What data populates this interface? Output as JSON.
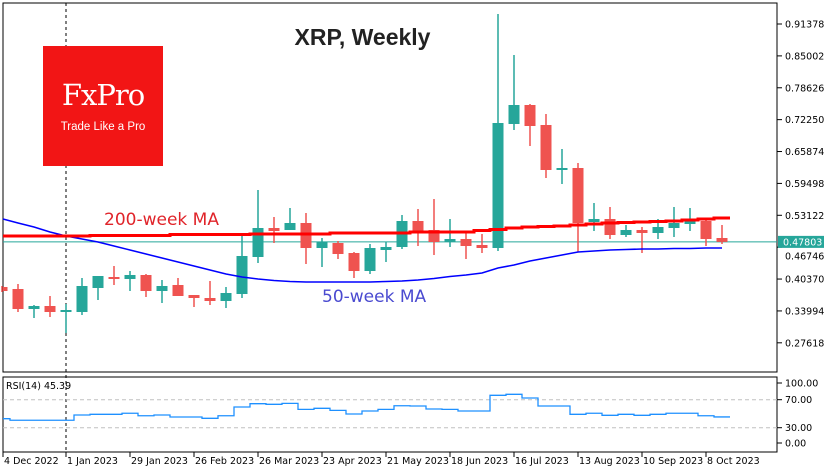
{
  "chart_data": {
    "type": "candlestick",
    "title": "XRP, Weekly",
    "price_axis": {
      "ticks": [
        "0.91378",
        "0.85002",
        "0.78626",
        "0.72250",
        "0.65874",
        "0.59498",
        "0.53122",
        "0.46746",
        "0.40370",
        "0.33994",
        "0.27618"
      ],
      "ylim": [
        0.2178,
        0.9558
      ]
    },
    "current_price": {
      "label": "0.47803",
      "value": 0.47803,
      "color": "#26a69a"
    },
    "x_labels": [
      {
        "label": "4 Dec 2022",
        "index": 0
      },
      {
        "label": "1 Jan 2023",
        "index": 4
      },
      {
        "label": "29 Jan 2023",
        "index": 8
      },
      {
        "label": "26 Feb 2023",
        "index": 12
      },
      {
        "label": "26 Mar 2023",
        "index": 16
      },
      {
        "label": "23 Apr 2023",
        "index": 20
      },
      {
        "label": "21 May 2023",
        "index": 24
      },
      {
        "label": "18 Jun 2023",
        "index": 28
      },
      {
        "label": "16 Jul 2023",
        "index": 32
      },
      {
        "label": "13 Aug 2023",
        "index": 36
      },
      {
        "label": "10 Sep 2023",
        "index": 40
      },
      {
        "label": "8 Oct 2023",
        "index": 44
      }
    ],
    "period_separator_index": 4,
    "ohlc": [
      [
        0.3878,
        0.3898,
        0.3778,
        0.3798
      ],
      [
        0.3838,
        0.3938,
        0.3378,
        0.3438
      ],
      [
        0.3438,
        0.3518,
        0.3258,
        0.3498
      ],
      [
        0.3498,
        0.3698,
        0.3278,
        0.3378
      ],
      [
        0.3378,
        0.3538,
        0.2958,
        0.3418
      ],
      [
        0.3378,
        0.4058,
        0.3318,
        0.3898
      ],
      [
        0.3858,
        0.4098,
        0.3618,
        0.4098
      ],
      [
        0.4078,
        0.4298,
        0.3918,
        0.4038
      ],
      [
        0.4038,
        0.4198,
        0.3798,
        0.4118
      ],
      [
        0.4118,
        0.4138,
        0.3678,
        0.3798
      ],
      [
        0.3798,
        0.4018,
        0.3558,
        0.3898
      ],
      [
        0.3918,
        0.4058,
        0.3698,
        0.3698
      ],
      [
        0.3718,
        0.3718,
        0.3478,
        0.3658
      ],
      [
        0.3658,
        0.3998,
        0.3518,
        0.3598
      ],
      [
        0.3598,
        0.3878,
        0.3458,
        0.3758
      ],
      [
        0.3738,
        0.4898,
        0.3658,
        0.4498
      ],
      [
        0.4478,
        0.5818,
        0.4358,
        0.5058
      ],
      [
        0.5058,
        0.5278,
        0.4758,
        0.4998
      ],
      [
        0.5018,
        0.5458,
        0.5018,
        0.5158
      ],
      [
        0.5158,
        0.5358,
        0.4338,
        0.4658
      ],
      [
        0.4658,
        0.4858,
        0.4278,
        0.4778
      ],
      [
        0.4758,
        0.4798,
        0.4438,
        0.4538
      ],
      [
        0.4558,
        0.4578,
        0.4058,
        0.4198
      ],
      [
        0.4198,
        0.4738,
        0.4138,
        0.4658
      ],
      [
        0.4618,
        0.4778,
        0.4378,
        0.4678
      ],
      [
        0.4678,
        0.5318,
        0.4638,
        0.5198
      ],
      [
        0.5198,
        0.5438,
        0.4698,
        0.4978
      ],
      [
        0.5018,
        0.5638,
        0.4518,
        0.4778
      ],
      [
        0.4778,
        0.5238,
        0.4678,
        0.4838
      ],
      [
        0.4838,
        0.4958,
        0.4438,
        0.4698
      ],
      [
        0.4718,
        0.4938,
        0.4558,
        0.4658
      ],
      [
        0.4658,
        0.9338,
        0.4598,
        0.7158
      ],
      [
        0.7138,
        0.8518,
        0.7018,
        0.7518
      ],
      [
        0.7518,
        0.7538,
        0.6698,
        0.7098
      ],
      [
        0.7118,
        0.7338,
        0.6058,
        0.6218
      ],
      [
        0.6218,
        0.6638,
        0.5938,
        0.6258
      ],
      [
        0.6258,
        0.6358,
        0.4578,
        0.5158
      ],
      [
        0.5178,
        0.5558,
        0.4998,
        0.5238
      ],
      [
        0.5238,
        0.5478,
        0.4838,
        0.4918
      ],
      [
        0.4918,
        0.5118,
        0.4878,
        0.5018
      ],
      [
        0.5018,
        0.5078,
        0.4558,
        0.4958
      ],
      [
        0.4958,
        0.5238,
        0.4838,
        0.5078
      ],
      [
        0.5058,
        0.5478,
        0.4878,
        0.5158
      ],
      [
        0.5138,
        0.5458,
        0.4998,
        0.5198
      ],
      [
        0.5198,
        0.5258,
        0.4698,
        0.4838
      ],
      [
        0.4858,
        0.5118,
        0.4738,
        0.478
      ]
    ],
    "ma200": {
      "label": "200-week MA",
      "color": "#ff0000",
      "values": [
        0.4898,
        0.4898,
        0.4898,
        0.4898,
        0.4898,
        0.4898,
        0.4908,
        0.4908,
        0.4908,
        0.4908,
        0.4908,
        0.4928,
        0.4928,
        0.4928,
        0.4928,
        0.4928,
        0.4938,
        0.4938,
        0.4938,
        0.4938,
        0.4938,
        0.4958,
        0.4958,
        0.4958,
        0.4958,
        0.4958,
        0.4978,
        0.4978,
        0.4978,
        0.4978,
        0.5008,
        0.5028,
        0.5058,
        0.5078,
        0.5088,
        0.5098,
        0.5118,
        0.5138,
        0.5158,
        0.5168,
        0.5178,
        0.5188,
        0.5198,
        0.5218,
        0.5238,
        0.5258
      ]
    },
    "ma50": {
      "label": "50-week MA",
      "color": "#0000ff",
      "label_color": "#4a4ad0",
      "values": [
        0.5238,
        0.5158,
        0.5078,
        0.4978,
        0.4898,
        0.4838,
        0.4778,
        0.4698,
        0.4618,
        0.4538,
        0.4458,
        0.4378,
        0.4298,
        0.4218,
        0.4138,
        0.4078,
        0.4038,
        0.4008,
        0.3988,
        0.3978,
        0.3978,
        0.3978,
        0.3978,
        0.3978,
        0.3988,
        0.3998,
        0.4018,
        0.4048,
        0.4088,
        0.4118,
        0.4158,
        0.4258,
        0.4318,
        0.4398,
        0.4458,
        0.4518,
        0.4578,
        0.4598,
        0.4618,
        0.4628,
        0.4638,
        0.4638,
        0.4648,
        0.4648,
        0.4658,
        0.4658
      ]
    },
    "rsi": {
      "label": "RSI(14) 45.39",
      "period": 14,
      "last": 45.39,
      "color": "#1e90ff",
      "ticks": [
        "100.00",
        "70.00",
        "30.00",
        "0.00"
      ],
      "levels": [
        70,
        30
      ],
      "values": [
        42.9,
        40.6,
        40.6,
        40.6,
        40.6,
        48.1,
        49.1,
        49.1,
        50.6,
        47.1,
        48.1,
        45.3,
        45.3,
        43.4,
        47.1,
        59.6,
        64.3,
        63.4,
        64.8,
        56.2,
        57.7,
        54.8,
        49.6,
        53.9,
        56.2,
        61.4,
        61.0,
        56.7,
        56.2,
        53.9,
        53.9,
        76.3,
        77.7,
        72.4,
        61.0,
        61.0,
        49.1,
        50.6,
        47.7,
        49.1,
        47.7,
        49.1,
        50.6,
        50.6,
        47.1,
        45.39
      ]
    },
    "colors": {
      "bull": "#26a69a",
      "bear": "#ef5350"
    }
  },
  "logo": {
    "name": "FxPro",
    "tagline": "Trade Like a Pro"
  }
}
